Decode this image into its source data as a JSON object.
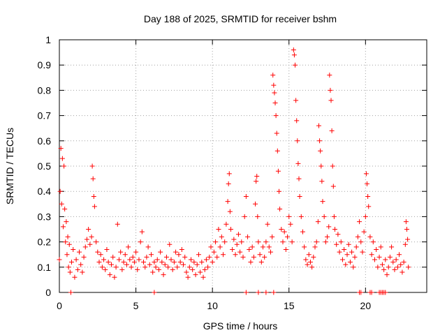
{
  "chart_data": {
    "type": "scatter",
    "title": "Day 188 of 2025, SRMTID for receiver bshm",
    "xlabel": "GPS time / hours",
    "ylabel": "SRMTID / TECUs",
    "xlim": [
      0,
      24
    ],
    "ylim": [
      0,
      1
    ],
    "xticks": [
      0,
      5,
      10,
      15,
      20
    ],
    "yticks": [
      0,
      0.1,
      0.2,
      0.3,
      0.4,
      0.5,
      0.6,
      0.7,
      0.8,
      0.9,
      1
    ],
    "xtick_labels": [
      "0",
      "5",
      "10",
      "15",
      "20"
    ],
    "ytick_labels": [
      "0",
      "0.1",
      "0.2",
      "0.3",
      "0.4",
      "0.5",
      "0.6",
      "0.7",
      "0.8",
      "0.9",
      "1"
    ],
    "grid": true,
    "marker": "+",
    "color": "#ff0000",
    "series": [
      {
        "name": "SRMTID",
        "points": [
          [
            0.0,
            0.13
          ],
          [
            0.05,
            0.4
          ],
          [
            0.1,
            0.57
          ],
          [
            0.15,
            0.35
          ],
          [
            0.2,
            0.53
          ],
          [
            0.25,
            0.26
          ],
          [
            0.3,
            0.5
          ],
          [
            0.35,
            0.33
          ],
          [
            0.4,
            0.2
          ],
          [
            0.45,
            0.28
          ],
          [
            0.5,
            0.15
          ],
          [
            0.55,
            0.22
          ],
          [
            0.6,
            0.1
          ],
          [
            0.65,
            0.19
          ],
          [
            0.7,
            0.08
          ],
          [
            0.8,
            0.12
          ],
          [
            0.9,
            0.17
          ],
          [
            1.0,
            0.06
          ],
          [
            1.1,
            0.13
          ],
          [
            1.2,
            0.09
          ],
          [
            1.3,
            0.16
          ],
          [
            1.4,
            0.11
          ],
          [
            1.5,
            0.08
          ],
          [
            1.6,
            0.14
          ],
          [
            1.7,
            0.18
          ],
          [
            1.8,
            0.21
          ],
          [
            1.9,
            0.25
          ],
          [
            2.0,
            0.19
          ],
          [
            2.1,
            0.22
          ],
          [
            2.15,
            0.5
          ],
          [
            2.2,
            0.45
          ],
          [
            2.25,
            0.38
          ],
          [
            2.3,
            0.34
          ],
          [
            2.4,
            0.2
          ],
          [
            2.5,
            0.16
          ],
          [
            2.6,
            0.12
          ],
          [
            2.7,
            0.15
          ],
          [
            2.8,
            0.1
          ],
          [
            2.9,
            0.13
          ],
          [
            3.0,
            0.09
          ],
          [
            3.1,
            0.17
          ],
          [
            3.2,
            0.12
          ],
          [
            3.3,
            0.07
          ],
          [
            3.4,
            0.11
          ],
          [
            3.5,
            0.14
          ],
          [
            3.6,
            0.06
          ],
          [
            3.7,
            0.1
          ],
          [
            3.8,
            0.27
          ],
          [
            3.9,
            0.13
          ],
          [
            4.0,
            0.16
          ],
          [
            4.1,
            0.09
          ],
          [
            4.2,
            0.12
          ],
          [
            4.3,
            0.15
          ],
          [
            4.4,
            0.11
          ],
          [
            4.5,
            0.18
          ],
          [
            4.6,
            0.13
          ],
          [
            4.7,
            0.1
          ],
          [
            4.8,
            0.14
          ],
          [
            4.9,
            0.12
          ],
          [
            5.0,
            0.16
          ],
          [
            5.1,
            0.09
          ],
          [
            5.2,
            0.13
          ],
          [
            5.3,
            0.2
          ],
          [
            5.4,
            0.24
          ],
          [
            5.5,
            0.12
          ],
          [
            5.6,
            0.1
          ],
          [
            5.7,
            0.14
          ],
          [
            5.8,
            0.18
          ],
          [
            5.9,
            0.11
          ],
          [
            6.0,
            0.15
          ],
          [
            6.1,
            0.08
          ],
          [
            6.2,
            0.12
          ],
          [
            6.3,
            0.1
          ],
          [
            6.4,
            0.13
          ],
          [
            6.5,
            0.09
          ],
          [
            6.6,
            0.16
          ],
          [
            6.7,
            0.12
          ],
          [
            6.8,
            0.07
          ],
          [
            6.9,
            0.11
          ],
          [
            7.0,
            0.14
          ],
          [
            7.1,
            0.1
          ],
          [
            7.2,
            0.19
          ],
          [
            7.3,
            0.13
          ],
          [
            7.4,
            0.09
          ],
          [
            7.5,
            0.12
          ],
          [
            7.6,
            0.16
          ],
          [
            7.7,
            0.1
          ],
          [
            7.8,
            0.15
          ],
          [
            7.9,
            0.12
          ],
          [
            8.0,
            0.17
          ],
          [
            8.1,
            0.11
          ],
          [
            8.2,
            0.14
          ],
          [
            8.3,
            0.08
          ],
          [
            8.4,
            0.06
          ],
          [
            8.5,
            0.1
          ],
          [
            8.6,
            0.13
          ],
          [
            8.7,
            0.09
          ],
          [
            8.8,
            0.12
          ],
          [
            8.9,
            0.07
          ],
          [
            9.0,
            0.11
          ],
          [
            9.1,
            0.15
          ],
          [
            9.2,
            0.08
          ],
          [
            9.3,
            0.12
          ],
          [
            9.4,
            0.06
          ],
          [
            9.5,
            0.09
          ],
          [
            9.6,
            0.13
          ],
          [
            9.7,
            0.1
          ],
          [
            9.8,
            0.14
          ],
          [
            9.9,
            0.18
          ],
          [
            10.0,
            0.12
          ],
          [
            10.1,
            0.16
          ],
          [
            10.2,
            0.2
          ],
          [
            10.3,
            0.14
          ],
          [
            10.4,
            0.25
          ],
          [
            10.5,
            0.18
          ],
          [
            10.6,
            0.22
          ],
          [
            10.7,
            0.15
          ],
          [
            10.8,
            0.2
          ],
          [
            10.9,
            0.27
          ],
          [
            11.0,
            0.36
          ],
          [
            11.05,
            0.43
          ],
          [
            11.1,
            0.47
          ],
          [
            11.15,
            0.32
          ],
          [
            11.2,
            0.25
          ],
          [
            11.3,
            0.17
          ],
          [
            11.4,
            0.21
          ],
          [
            11.5,
            0.15
          ],
          [
            11.6,
            0.19
          ],
          [
            11.7,
            0.23
          ],
          [
            11.8,
            0.16
          ],
          [
            11.9,
            0.2
          ],
          [
            12.0,
            0.14
          ],
          [
            12.1,
            0.3
          ],
          [
            12.2,
            0.38
          ],
          [
            12.3,
            0.22
          ],
          [
            12.4,
            0.17
          ],
          [
            12.5,
            0.12
          ],
          [
            12.6,
            0.18
          ],
          [
            12.7,
            0.14
          ],
          [
            12.8,
            0.35
          ],
          [
            12.85,
            0.44
          ],
          [
            12.9,
            0.46
          ],
          [
            12.95,
            0.3
          ],
          [
            13.0,
            0.2
          ],
          [
            13.1,
            0.15
          ],
          [
            13.2,
            0.12
          ],
          [
            13.3,
            0.18
          ],
          [
            13.4,
            0.14
          ],
          [
            13.5,
            0.2
          ],
          [
            13.6,
            0.27
          ],
          [
            13.7,
            0.18
          ],
          [
            13.8,
            0.16
          ],
          [
            13.9,
            0.22
          ],
          [
            13.95,
            0.86
          ],
          [
            14.0,
            0.82
          ],
          [
            14.05,
            0.79
          ],
          [
            14.1,
            0.75
          ],
          [
            14.15,
            0.7
          ],
          [
            14.2,
            0.63
          ],
          [
            14.25,
            0.56
          ],
          [
            14.3,
            0.48
          ],
          [
            14.35,
            0.4
          ],
          [
            14.4,
            0.33
          ],
          [
            14.5,
            0.25
          ],
          [
            14.6,
            0.2
          ],
          [
            14.7,
            0.24
          ],
          [
            14.8,
            0.17
          ],
          [
            14.9,
            0.22
          ],
          [
            15.0,
            0.3
          ],
          [
            15.1,
            0.27
          ],
          [
            15.2,
            0.2
          ],
          [
            15.3,
            0.96
          ],
          [
            15.35,
            0.94
          ],
          [
            15.4,
            0.9
          ],
          [
            15.45,
            0.76
          ],
          [
            15.5,
            0.68
          ],
          [
            15.55,
            0.6
          ],
          [
            15.6,
            0.51
          ],
          [
            15.65,
            0.45
          ],
          [
            15.7,
            0.38
          ],
          [
            15.8,
            0.3
          ],
          [
            15.9,
            0.24
          ],
          [
            16.0,
            0.18
          ],
          [
            16.1,
            0.13
          ],
          [
            16.2,
            0.11
          ],
          [
            16.3,
            0.15
          ],
          [
            16.4,
            0.12
          ],
          [
            16.5,
            0.1
          ],
          [
            16.6,
            0.14
          ],
          [
            16.7,
            0.18
          ],
          [
            16.8,
            0.2
          ],
          [
            16.9,
            0.28
          ],
          [
            16.95,
            0.66
          ],
          [
            17.0,
            0.6
          ],
          [
            17.05,
            0.56
          ],
          [
            17.1,
            0.5
          ],
          [
            17.15,
            0.44
          ],
          [
            17.2,
            0.36
          ],
          [
            17.3,
            0.3
          ],
          [
            17.4,
            0.2
          ],
          [
            17.5,
            0.22
          ],
          [
            17.6,
            0.26
          ],
          [
            17.65,
            0.86
          ],
          [
            17.7,
            0.8
          ],
          [
            17.75,
            0.76
          ],
          [
            17.8,
            0.64
          ],
          [
            17.85,
            0.5
          ],
          [
            17.9,
            0.42
          ],
          [
            17.95,
            0.3
          ],
          [
            18.0,
            0.25
          ],
          [
            18.1,
            0.19
          ],
          [
            18.2,
            0.23
          ],
          [
            18.3,
            0.16
          ],
          [
            18.4,
            0.2
          ],
          [
            18.5,
            0.13
          ],
          [
            18.6,
            0.17
          ],
          [
            18.7,
            0.11
          ],
          [
            18.8,
            0.15
          ],
          [
            18.9,
            0.19
          ],
          [
            19.0,
            0.12
          ],
          [
            19.1,
            0.16
          ],
          [
            19.2,
            0.1
          ],
          [
            19.3,
            0.14
          ],
          [
            19.4,
            0.18
          ],
          [
            19.5,
            0.22
          ],
          [
            19.6,
            0.28
          ],
          [
            19.7,
            0.2
          ],
          [
            19.8,
            0.16
          ],
          [
            19.9,
            0.24
          ],
          [
            20.0,
            0.3
          ],
          [
            20.05,
            0.47
          ],
          [
            20.1,
            0.43
          ],
          [
            20.15,
            0.38
          ],
          [
            20.2,
            0.34
          ],
          [
            20.3,
            0.22
          ],
          [
            20.4,
            0.15
          ],
          [
            20.5,
            0.2
          ],
          [
            20.6,
            0.13
          ],
          [
            20.7,
            0.17
          ],
          [
            20.8,
            0.1
          ],
          [
            20.9,
            0.14
          ],
          [
            21.0,
            0.18
          ],
          [
            21.1,
            0.11
          ],
          [
            21.2,
            0.09
          ],
          [
            21.3,
            0.13
          ],
          [
            21.4,
            0.07
          ],
          [
            21.5,
            0.1
          ],
          [
            21.6,
            0.14
          ],
          [
            21.7,
            0.18
          ],
          [
            21.8,
            0.12
          ],
          [
            21.9,
            0.09
          ],
          [
            22.0,
            0.13
          ],
          [
            22.1,
            0.1
          ],
          [
            22.2,
            0.15
          ],
          [
            22.3,
            0.11
          ],
          [
            22.4,
            0.08
          ],
          [
            22.5,
            0.12
          ],
          [
            22.6,
            0.19
          ],
          [
            22.65,
            0.28
          ],
          [
            22.7,
            0.25
          ],
          [
            22.75,
            0.21
          ],
          [
            22.8,
            0.1
          ],
          [
            0.75,
            0.0
          ],
          [
            6.2,
            0.0
          ],
          [
            12.2,
            0.0
          ],
          [
            13.0,
            0.0
          ],
          [
            13.5,
            0.0
          ],
          [
            14.0,
            0.0
          ],
          [
            19.6,
            0.0
          ],
          [
            19.7,
            0.0
          ],
          [
            20.3,
            0.0
          ],
          [
            20.4,
            0.0
          ],
          [
            20.9,
            0.0
          ],
          [
            21.0,
            0.0
          ],
          [
            21.1,
            0.0
          ],
          [
            21.2,
            0.0
          ],
          [
            21.3,
            0.0
          ]
        ]
      }
    ]
  }
}
